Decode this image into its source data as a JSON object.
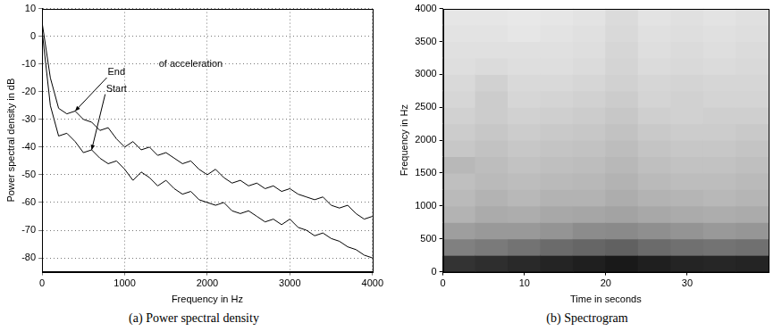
{
  "chart_data": [
    {
      "type": "line",
      "caption": "(a) Power spectral density",
      "x_label": "Frequency in Hz",
      "y_label": "Power spectral density in dB",
      "x": [
        0,
        100,
        200,
        300,
        400,
        500,
        600,
        700,
        800,
        900,
        1000,
        1100,
        1200,
        1300,
        1400,
        1500,
        1600,
        1700,
        1800,
        1900,
        2000,
        2100,
        2200,
        2300,
        2400,
        2500,
        2600,
        2700,
        2800,
        2900,
        3000,
        3100,
        3200,
        3300,
        3400,
        3500,
        3600,
        3700,
        3800,
        3900,
        4000
      ],
      "series": [
        {
          "name": "End",
          "color": "#000000",
          "values": [
            5,
            -15,
            -26,
            -28,
            -27,
            -30,
            -31,
            -34,
            -33,
            -37,
            -40,
            -38,
            -41,
            -40,
            -43,
            -42,
            -44,
            -46,
            -45,
            -48,
            -50,
            -48,
            -51,
            -53,
            -52,
            -54,
            -53,
            -55,
            -54,
            -56,
            -55,
            -57,
            -58,
            -59,
            -58,
            -61,
            -62,
            -61,
            -64,
            -66,
            -65
          ]
        },
        {
          "name": "Start",
          "color": "#000000",
          "values": [
            2,
            -25,
            -36,
            -35,
            -38,
            -42,
            -41,
            -44,
            -46,
            -45,
            -48,
            -52,
            -49,
            -51,
            -54,
            -52,
            -55,
            -57,
            -56,
            -59,
            -60,
            -61,
            -60,
            -63,
            -64,
            -63,
            -65,
            -67,
            -66,
            -68,
            -66,
            -69,
            -70,
            -72,
            -71,
            -73,
            -74,
            -76,
            -77,
            -79,
            -80
          ]
        }
      ],
      "annotations": [
        {
          "text": "End",
          "x": 900,
          "y": -13,
          "arrow_to": [
            400,
            -27
          ]
        },
        {
          "text": "Start",
          "x": 900,
          "y": -19,
          "arrow_to": [
            600,
            -41
          ]
        },
        {
          "text": "of acceleration",
          "x": 1800,
          "y": -10
        }
      ],
      "xlim": [
        0,
        4000
      ],
      "xticks": [
        0,
        1000,
        2000,
        3000,
        4000
      ],
      "ylim": [
        -85,
        10
      ],
      "yticks": [
        -80,
        -70,
        -60,
        -50,
        -40,
        -30,
        -20,
        -10,
        0,
        10
      ],
      "grid": true
    },
    {
      "type": "heatmap",
      "caption": "(b) Spectrogram",
      "x_label": "Time in seconds",
      "y_label": "Frequency in Hz",
      "time_bins": [
        0,
        4,
        8,
        12,
        16,
        20,
        24,
        28,
        32,
        36,
        40
      ],
      "frequency_bins": [
        0,
        250,
        500,
        750,
        1000,
        1250,
        1500,
        1750,
        2000,
        2250,
        2500,
        2750,
        3000,
        3250,
        3500,
        3750,
        4000
      ],
      "cells": [
        [
          80,
          50,
          38,
          30,
          27,
          25,
          28,
          22,
          20,
          18,
          16,
          15,
          13,
          12,
          11,
          10
        ],
        [
          82,
          52,
          40,
          33,
          30,
          27,
          26,
          24,
          22,
          20,
          20,
          18,
          14,
          12,
          11,
          10
        ],
        [
          84,
          55,
          40,
          32,
          28,
          26,
          24,
          22,
          20,
          18,
          16,
          15,
          13,
          12,
          10,
          9
        ],
        [
          86,
          58,
          42,
          34,
          30,
          27,
          25,
          23,
          21,
          19,
          17,
          15,
          13,
          12,
          11,
          10
        ],
        [
          88,
          60,
          45,
          35,
          30,
          28,
          26,
          24,
          22,
          20,
          18,
          16,
          14,
          13,
          12,
          11
        ],
        [
          90,
          62,
          46,
          36,
          32,
          30,
          28,
          26,
          24,
          22,
          20,
          18,
          17,
          16,
          15,
          14
        ],
        [
          88,
          58,
          44,
          34,
          30,
          27,
          25,
          23,
          21,
          19,
          17,
          16,
          14,
          13,
          12,
          11
        ],
        [
          86,
          56,
          42,
          33,
          29,
          26,
          24,
          22,
          20,
          18,
          18,
          17,
          15,
          14,
          13,
          12
        ],
        [
          85,
          55,
          40,
          32,
          28,
          26,
          24,
          22,
          20,
          19,
          17,
          16,
          14,
          13,
          12,
          11
        ],
        [
          86,
          56,
          41,
          33,
          29,
          27,
          25,
          23,
          21,
          19,
          17,
          16,
          15,
          14,
          13,
          12
        ]
      ],
      "clim": [
        0,
        100
      ],
      "xlim": [
        0,
        40
      ],
      "xticks": [
        0,
        10,
        20,
        30
      ],
      "ylim": [
        0,
        4000
      ],
      "yticks": [
        0,
        500,
        1000,
        1500,
        2000,
        2500,
        3000,
        3500,
        4000
      ],
      "grid": false
    }
  ]
}
